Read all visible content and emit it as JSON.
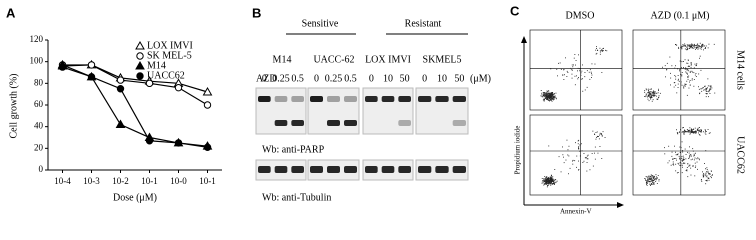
{
  "chart_data": {
    "type": "line",
    "panel_label": "A",
    "categories": [
      "10-4",
      "10-3",
      "10-2",
      "10-1",
      "10-0",
      "10-1"
    ],
    "series": [
      {
        "name": "LOX IMVI",
        "marker": "triangle-open",
        "color": "#000000",
        "values": [
          96,
          97,
          85,
          82,
          80,
          72
        ]
      },
      {
        "name": "SK MEL-5",
        "marker": "circle-open",
        "color": "#000000",
        "values": [
          97,
          97,
          83,
          80,
          76,
          60
        ]
      },
      {
        "name": "M14",
        "marker": "triangle",
        "color": "#000000",
        "values": [
          97,
          86,
          42,
          30,
          25,
          22
        ]
      },
      {
        "name": "UACC62",
        "marker": "circle",
        "color": "#000000",
        "values": [
          95,
          86,
          75,
          27,
          25,
          21
        ]
      }
    ],
    "ylim": [
      0,
      120
    ],
    "yticks": [
      0,
      20,
      40,
      60,
      80,
      100,
      120
    ],
    "y_label": "Cell growth (%)",
    "x_label": "Dose (μM)",
    "legend": "upper-right"
  },
  "blot": {
    "panel_label": "B",
    "groups": [
      "Sensitive",
      "Resistant"
    ],
    "cell_lines": [
      "M14",
      "UACC-62",
      "LOX IMVI",
      "SKMEL5"
    ],
    "treatment_label": "AZD",
    "doses": [
      [
        "0",
        "0.25",
        "0.5"
      ],
      [
        "0",
        "0.25",
        "0.5"
      ],
      [
        "0",
        "10",
        "50"
      ],
      [
        "0",
        "10",
        "50"
      ]
    ],
    "unit": "(μM)",
    "probes": [
      "Wb: anti-PARP",
      "Wb: anti-Tubulin"
    ]
  },
  "flow": {
    "panel_label": "C",
    "columns": [
      "DMSO",
      "AZD (0.1 μM)"
    ],
    "rows": [
      "M14 cells",
      "UACC62"
    ],
    "y_label": "Propidium iodide",
    "x_label": "Annexin-V"
  }
}
